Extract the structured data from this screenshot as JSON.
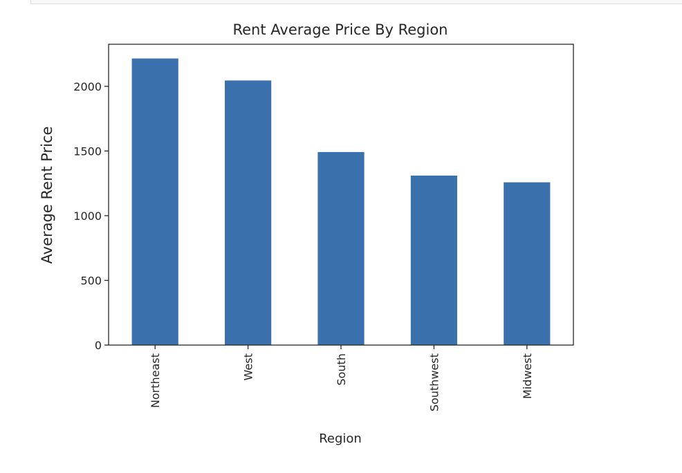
{
  "chart_data": {
    "type": "bar",
    "title": "Rent Average Price By Region",
    "xlabel": "Region",
    "ylabel": "Average Rent Price",
    "categories": [
      "Northeast",
      "West",
      "South",
      "Southwest",
      "Midwest"
    ],
    "values": [
      2215,
      2045,
      1492,
      1310,
      1258
    ],
    "ylim": [
      0,
      2325
    ],
    "yticks": [
      0,
      500,
      1000,
      1500,
      2000
    ],
    "grid": false,
    "bar_color": "#3a70ab",
    "x_tick_rotation": "vertical"
  }
}
